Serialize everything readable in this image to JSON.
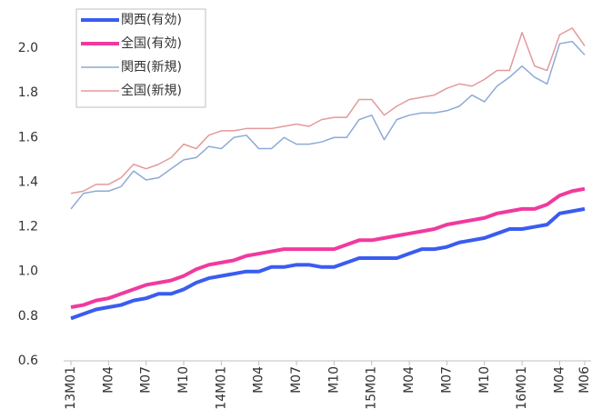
{
  "chart_data": {
    "type": "line",
    "categories": [
      "13M01",
      null,
      null,
      "M04",
      null,
      null,
      "M07",
      null,
      null,
      "M10",
      null,
      null,
      "14M01",
      null,
      null,
      "M04",
      null,
      null,
      "M07",
      null,
      null,
      "M10",
      null,
      null,
      "15M01",
      null,
      null,
      "M04",
      null,
      null,
      "M07",
      null,
      null,
      "M10",
      null,
      null,
      "16M01",
      null,
      null,
      "M04",
      null,
      "M06"
    ],
    "series": [
      {
        "name": "関西(有効)",
        "color": "#3a5cf0",
        "width": 4,
        "values": [
          0.79,
          0.81,
          0.83,
          0.84,
          0.85,
          0.87,
          0.88,
          0.9,
          0.9,
          0.92,
          0.95,
          0.97,
          0.98,
          0.99,
          1.0,
          1.0,
          1.02,
          1.02,
          1.03,
          1.03,
          1.02,
          1.02,
          1.04,
          1.06,
          1.06,
          1.06,
          1.06,
          1.08,
          1.1,
          1.1,
          1.11,
          1.13,
          1.14,
          1.15,
          1.17,
          1.19,
          1.19,
          1.2,
          1.21,
          1.26,
          1.27,
          1.28
        ]
      },
      {
        "name": "全国(有効)",
        "color": "#f03a9e",
        "width": 4,
        "values": [
          0.84,
          0.85,
          0.87,
          0.88,
          0.9,
          0.92,
          0.94,
          0.95,
          0.96,
          0.98,
          1.01,
          1.03,
          1.04,
          1.05,
          1.07,
          1.08,
          1.09,
          1.1,
          1.1,
          1.1,
          1.1,
          1.1,
          1.12,
          1.14,
          1.14,
          1.15,
          1.16,
          1.17,
          1.18,
          1.19,
          1.21,
          1.22,
          1.23,
          1.24,
          1.26,
          1.27,
          1.28,
          1.28,
          1.3,
          1.34,
          1.36,
          1.37
        ]
      },
      {
        "name": "関西(新規)",
        "color": "#8eaad8",
        "width": 1.5,
        "values": [
          1.28,
          1.35,
          1.36,
          1.36,
          1.38,
          1.45,
          1.41,
          1.42,
          1.46,
          1.5,
          1.51,
          1.56,
          1.55,
          1.6,
          1.61,
          1.55,
          1.55,
          1.6,
          1.57,
          1.57,
          1.58,
          1.6,
          1.6,
          1.68,
          1.7,
          1.59,
          1.68,
          1.7,
          1.71,
          1.71,
          1.72,
          1.74,
          1.79,
          1.76,
          1.83,
          1.87,
          1.92,
          1.87,
          1.84,
          2.02,
          2.03,
          1.97
        ]
      },
      {
        "name": "全国(新規)",
        "color": "#e39a9a",
        "width": 1.5,
        "values": [
          1.35,
          1.36,
          1.39,
          1.39,
          1.42,
          1.48,
          1.46,
          1.48,
          1.51,
          1.57,
          1.55,
          1.61,
          1.63,
          1.63,
          1.64,
          1.64,
          1.64,
          1.65,
          1.66,
          1.65,
          1.68,
          1.69,
          1.69,
          1.77,
          1.77,
          1.7,
          1.74,
          1.77,
          1.78,
          1.79,
          1.82,
          1.84,
          1.83,
          1.86,
          1.9,
          1.9,
          2.07,
          1.92,
          1.9,
          2.06,
          2.09,
          2.01
        ]
      }
    ],
    "ylim": [
      0.6,
      2.1
    ],
    "yticks": [
      0.6,
      0.8,
      {
        "value": 1,
        "label": "1.0"
      },
      1.2,
      1.4,
      1.6,
      1.8,
      {
        "value": 2,
        "label": "2.0"
      }
    ],
    "grid": false
  }
}
